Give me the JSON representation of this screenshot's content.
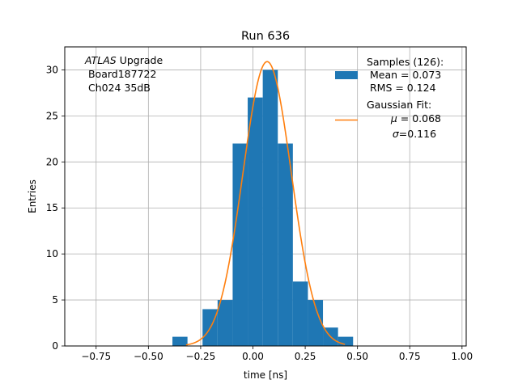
{
  "chart_data": {
    "type": "bar",
    "title": "Run 636",
    "xlabel": "time [ns]",
    "ylabel": "Entries",
    "xlim": [
      -0.9,
      1.02
    ],
    "ylim": [
      0,
      32.5
    ],
    "grid": true,
    "xticks": [
      -0.75,
      -0.5,
      -0.25,
      0.0,
      0.25,
      0.5,
      0.75,
      1.0
    ],
    "xtick_labels": [
      "−0.75",
      "−0.50",
      "−0.25",
      "0.00",
      "0.25",
      "0.50",
      "0.75",
      "1.00"
    ],
    "yticks": [
      0,
      5,
      10,
      15,
      20,
      25,
      30
    ],
    "yticks_labels": [
      "0",
      "5",
      "10",
      "15",
      "20",
      "25",
      "30"
    ],
    "histogram": {
      "bin_edges": [
        -0.385,
        -0.313,
        -0.241,
        -0.169,
        -0.097,
        -0.025,
        0.047,
        0.119,
        0.191,
        0.263,
        0.335,
        0.407,
        0.479
      ],
      "counts": [
        1,
        0,
        4,
        5,
        22,
        27,
        30,
        22,
        7,
        5,
        2,
        1
      ],
      "color": "#1f77b4"
    },
    "fit": {
      "type": "gaussian",
      "mu": 0.068,
      "sigma": 0.116,
      "amplitude": 30.9,
      "x_range": [
        -0.32,
        0.44
      ],
      "color": "#ff7f0e"
    },
    "annotation": {
      "line1_italic": "ATLAS",
      "line1_rest": " Upgrade",
      "line2": " Board187722",
      "line3": " Ch024 35dB"
    },
    "legend": {
      "position": "top-right",
      "hist_title": "Samples (126):",
      "hist_mean": " Mean = 0.073",
      "hist_rms": " RMS = 0.124",
      "fit_title": "Gaussian Fit:",
      "fit_mu_sym": "μ",
      "fit_mu_val": " = 0.068",
      "fit_sigma_sym": "σ",
      "fit_sigma_val": "=0.116"
    }
  }
}
